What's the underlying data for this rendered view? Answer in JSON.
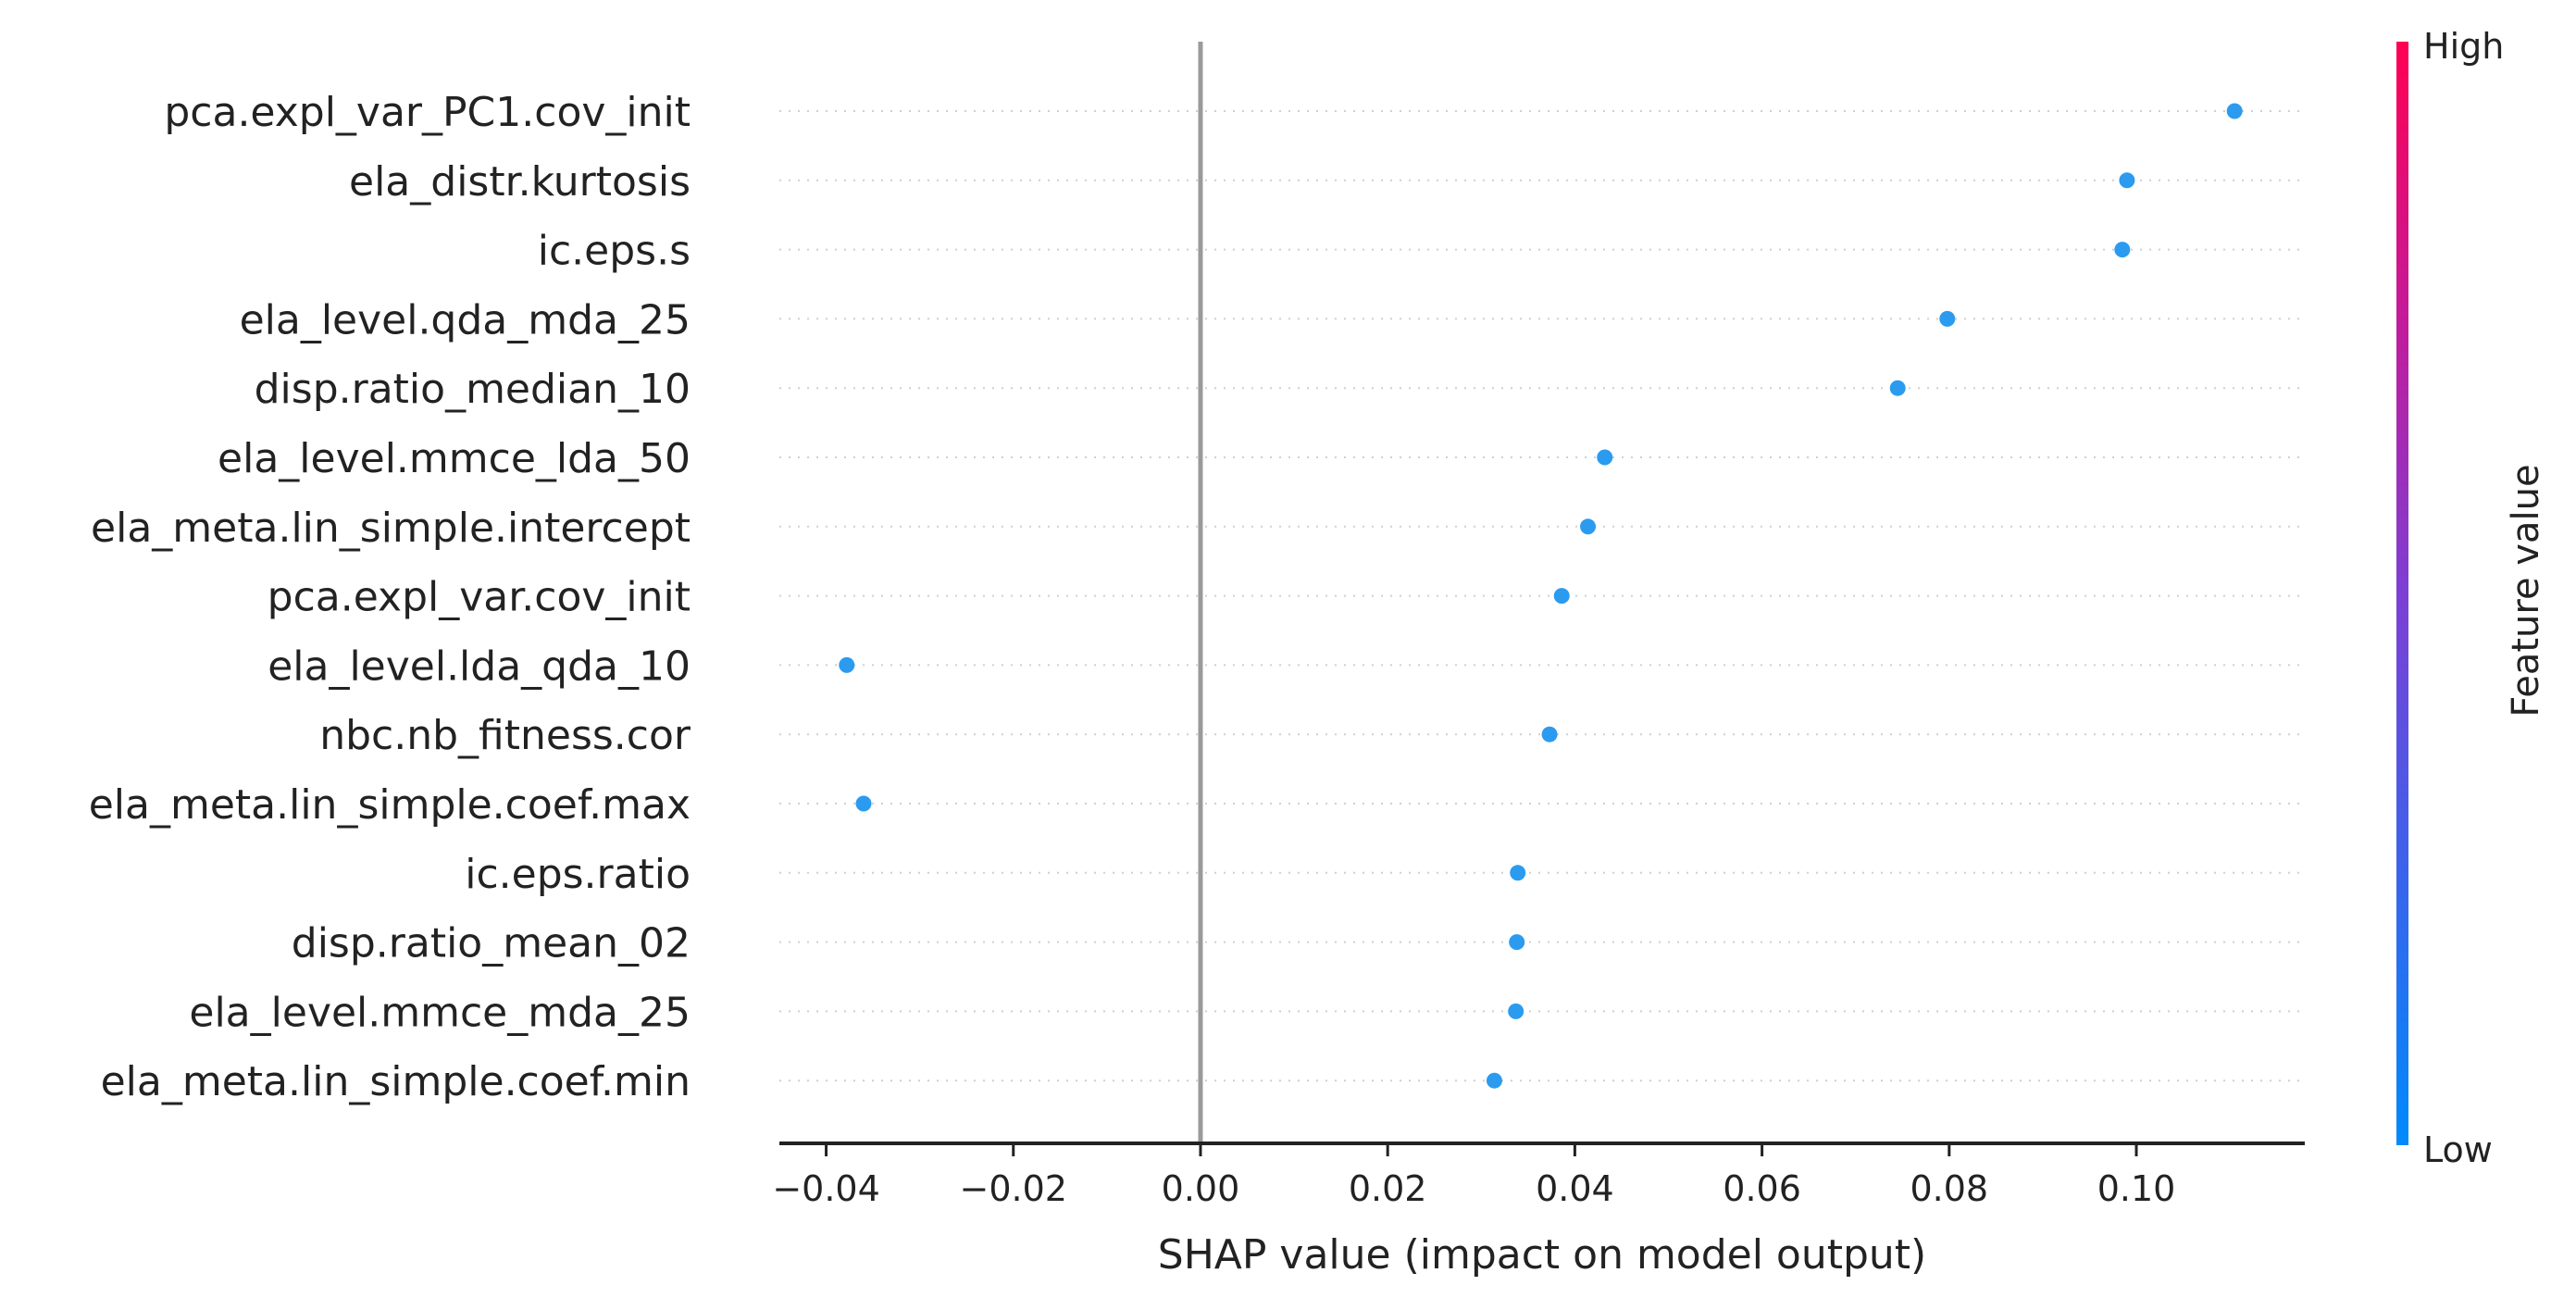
{
  "chart_data": {
    "type": "scatter",
    "subtype": "shap-summary",
    "xlabel": "SHAP value (impact on model output)",
    "xlim": [
      -0.045,
      0.118
    ],
    "xticks": [
      -0.04,
      -0.02,
      0.0,
      0.02,
      0.04,
      0.06,
      0.08,
      0.1
    ],
    "xtick_labels": [
      "−0.04",
      "−0.02",
      "0.00",
      "0.02",
      "0.04",
      "0.06",
      "0.08",
      "0.10"
    ],
    "features": [
      {
        "name": "pca.expl_var_PC1.cov_init",
        "shap": 0.1105
      },
      {
        "name": "ela_distr.kurtosis",
        "shap": 0.099
      },
      {
        "name": "ic.eps.s",
        "shap": 0.0985
      },
      {
        "name": "ela_level.qda_mda_25",
        "shap": 0.0798
      },
      {
        "name": "disp.ratio_median_10",
        "shap": 0.0745
      },
      {
        "name": "ela_level.mmce_lda_50",
        "shap": 0.0432
      },
      {
        "name": "ela_meta.lin_simple.intercept",
        "shap": 0.0414
      },
      {
        "name": "pca.expl_var.cov_init",
        "shap": 0.0386
      },
      {
        "name": "ela_level.lda_qda_10",
        "shap": -0.0378
      },
      {
        "name": "nbc.nb_fitness.cor",
        "shap": 0.0373
      },
      {
        "name": "ela_meta.lin_simple.coef.max",
        "shap": -0.036
      },
      {
        "name": "ic.eps.ratio",
        "shap": 0.0339
      },
      {
        "name": "disp.ratio_mean_02",
        "shap": 0.0338
      },
      {
        "name": "ela_level.mmce_mda_25",
        "shap": 0.0337
      },
      {
        "name": "ela_meta.lin_simple.coef.min",
        "shap": 0.0314
      }
    ],
    "point_color": "#2b9bf0",
    "colorbar": {
      "title": "Feature value",
      "high_label": "High",
      "low_label": "Low",
      "colors": [
        "#ff0052",
        "#c41a9a",
        "#7d3fd4",
        "#3b63ec",
        "#008afb"
      ]
    },
    "zero_line": true,
    "grid": "dotted horizontal row guides"
  }
}
